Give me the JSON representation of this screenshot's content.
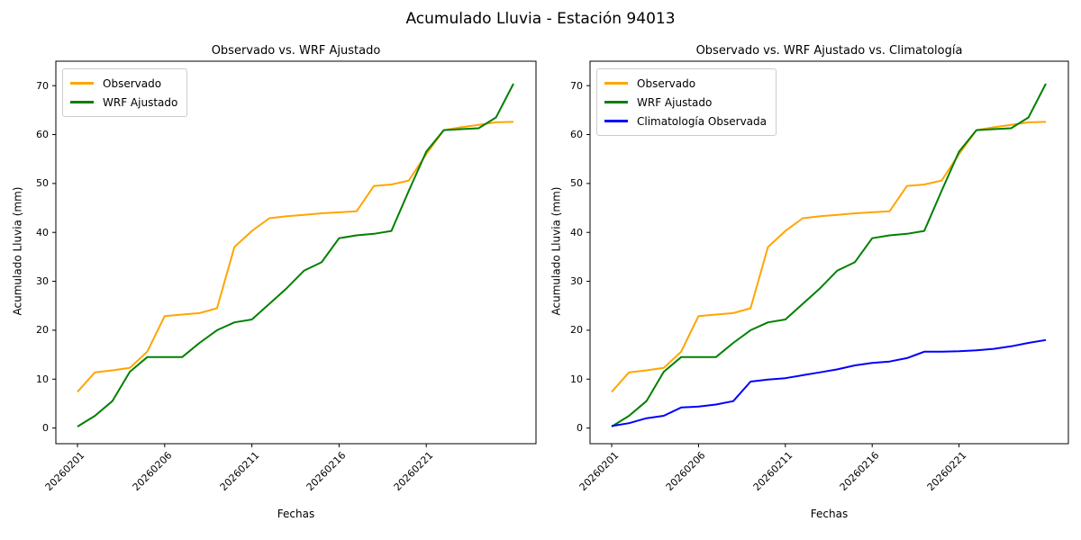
{
  "figure": {
    "title": "Acumulado Lluvia - Estación 94013",
    "background": "#ffffff"
  },
  "chart_data": [
    {
      "type": "line",
      "title": "Observado vs. WRF Ajustado",
      "xlabel": "Fechas",
      "ylabel": "Acumulado Lluvia (mm)",
      "x": [
        "20260201",
        "20260202",
        "20260203",
        "20260204",
        "20260205",
        "20260206",
        "20260207",
        "20260208",
        "20260209",
        "20260210",
        "20260211",
        "20260212",
        "20260213",
        "20260214",
        "20260215",
        "20260216",
        "20260217",
        "20260218",
        "20260219",
        "20260220",
        "20260221",
        "20260222",
        "20260223",
        "20260224",
        "20260225",
        "20260226"
      ],
      "x_tick_labels": [
        "20260201",
        "20260206",
        "20260211",
        "20260216",
        "20260221"
      ],
      "y_ticks": [
        0,
        10,
        20,
        30,
        40,
        50,
        60,
        70
      ],
      "ylim": [
        0,
        70
      ],
      "grid": false,
      "legend_position": "upper left",
      "series": [
        {
          "name": "Observado",
          "color": "#FFA500",
          "values": [
            7.4,
            11.4,
            11.8,
            12.3,
            15.6,
            22.9,
            23.2,
            23.5,
            24.5,
            37.0,
            40.3,
            42.9,
            43.3,
            43.6,
            43.9,
            44.1,
            44.3,
            49.5,
            49.8,
            50.6,
            56.0,
            60.9,
            61.5,
            62.0,
            62.5,
            62.6
          ]
        },
        {
          "name": "WRF Ajustado",
          "color": "#008000",
          "values": [
            0.3,
            2.5,
            5.5,
            11.5,
            14.5,
            14.5,
            14.5,
            17.4,
            20.0,
            21.6,
            22.2,
            25.4,
            28.6,
            32.2,
            33.9,
            38.8,
            39.4,
            39.7,
            40.3,
            48.5,
            56.5,
            60.9,
            61.1,
            61.3,
            63.5,
            70.4
          ]
        }
      ]
    },
    {
      "type": "line",
      "title": "Observado vs. WRF Ajustado vs. Climatología",
      "xlabel": "Fechas",
      "ylabel": "Acumulado Lluvia (mm)",
      "x": [
        "20260201",
        "20260202",
        "20260203",
        "20260204",
        "20260205",
        "20260206",
        "20260207",
        "20260208",
        "20260209",
        "20260210",
        "20260211",
        "20260212",
        "20260213",
        "20260214",
        "20260215",
        "20260216",
        "20260217",
        "20260218",
        "20260219",
        "20260220",
        "20260221",
        "20260222",
        "20260223",
        "20260224",
        "20260225",
        "20260226"
      ],
      "x_tick_labels": [
        "20260201",
        "20260206",
        "20260211",
        "20260216",
        "20260221"
      ],
      "y_ticks": [
        0,
        10,
        20,
        30,
        40,
        50,
        60,
        70
      ],
      "ylim": [
        0,
        70
      ],
      "grid": false,
      "legend_position": "upper left",
      "series": [
        {
          "name": "Observado",
          "color": "#FFA500",
          "values": [
            7.4,
            11.4,
            11.8,
            12.3,
            15.6,
            22.9,
            23.2,
            23.5,
            24.5,
            37.0,
            40.3,
            42.9,
            43.3,
            43.6,
            43.9,
            44.1,
            44.3,
            49.5,
            49.8,
            50.6,
            56.0,
            60.9,
            61.5,
            62.0,
            62.5,
            62.6
          ]
        },
        {
          "name": "WRF Ajustado",
          "color": "#008000",
          "values": [
            0.3,
            2.5,
            5.5,
            11.5,
            14.5,
            14.5,
            14.5,
            17.4,
            20.0,
            21.6,
            22.2,
            25.4,
            28.6,
            32.2,
            33.9,
            38.8,
            39.4,
            39.7,
            40.3,
            48.5,
            56.5,
            60.9,
            61.1,
            61.3,
            63.5,
            70.4
          ]
        },
        {
          "name": "Climatología Observada",
          "color": "#0000FF",
          "values": [
            0.4,
            1.0,
            2.0,
            2.5,
            4.2,
            4.4,
            4.8,
            5.5,
            9.5,
            9.9,
            10.2,
            10.8,
            11.4,
            12.0,
            12.8,
            13.3,
            13.6,
            14.3,
            15.6,
            15.6,
            15.7,
            15.9,
            16.2,
            16.7,
            17.4,
            18.0
          ]
        }
      ]
    }
  ]
}
